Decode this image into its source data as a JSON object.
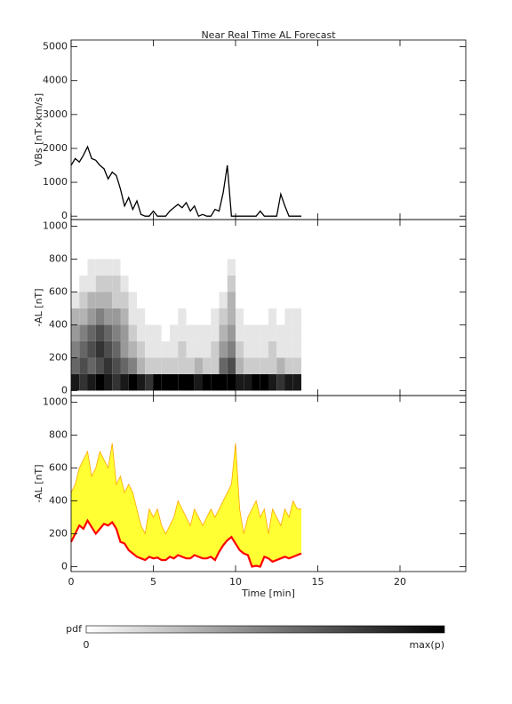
{
  "chart_data": [
    {
      "type": "line",
      "title": "Near Real Time AL Forecast",
      "ylabel": "VBs [nT×km/s]",
      "color": "#000000",
      "x": [
        0,
        0.25,
        0.5,
        0.75,
        1,
        1.25,
        1.5,
        1.75,
        2,
        2.25,
        2.5,
        2.75,
        3,
        3.25,
        3.5,
        3.75,
        4,
        4.25,
        4.5,
        4.75,
        5,
        5.25,
        5.5,
        5.75,
        6,
        6.25,
        6.5,
        6.75,
        7,
        7.25,
        7.5,
        7.75,
        8,
        8.25,
        8.5,
        8.75,
        9,
        9.25,
        9.5,
        9.75,
        10,
        10.25,
        10.5,
        10.75,
        11,
        11.25,
        11.5,
        11.75,
        12,
        12.25,
        12.5,
        12.75,
        13,
        13.25,
        13.5,
        13.75,
        14
      ],
      "values": [
        1500,
        1700,
        1600,
        1800,
        2050,
        1700,
        1650,
        1500,
        1400,
        1100,
        1300,
        1200,
        800,
        300,
        550,
        200,
        450,
        50,
        0,
        0,
        150,
        0,
        0,
        0,
        150,
        250,
        350,
        250,
        400,
        150,
        300,
        0,
        50,
        0,
        0,
        200,
        150,
        700,
        1500,
        0,
        0,
        0,
        0,
        0,
        0,
        0,
        150,
        0,
        0,
        0,
        0,
        650,
        300,
        0,
        0,
        0,
        0
      ],
      "xlim": [
        0,
        24
      ],
      "xticks": [
        0,
        5,
        10,
        15,
        20
      ],
      "ylim": [
        -100,
        5200
      ],
      "yticks": [
        0,
        1000,
        2000,
        3000,
        4000,
        5000
      ],
      "show_xtick_labels": false
    },
    {
      "type": "heatmap",
      "ylabel": "-AL [nT]",
      "x_bins": [
        0,
        0.5,
        1,
        1.5,
        2,
        2.5,
        3,
        3.5,
        4,
        4.5,
        5,
        5.5,
        6,
        6.5,
        7,
        7.5,
        8,
        8.5,
        9,
        9.5,
        10,
        10.5,
        11,
        11.5,
        12,
        12.5,
        13,
        13.5,
        14
      ],
      "y_bins": [
        0,
        100,
        200,
        300,
        400,
        500,
        600,
        700,
        800
      ],
      "z": [
        [
          0.9,
          0.8,
          0.9,
          1,
          0.9,
          0.8,
          0.9,
          1,
          0.9,
          0.8,
          1,
          1,
          1,
          1,
          1,
          0.9,
          1,
          1,
          1,
          1,
          0.9,
          0.9,
          1,
          1,
          0.9,
          0.8,
          0.9,
          0.9
        ],
        [
          0.6,
          0.7,
          0.6,
          0.7,
          0.8,
          0.7,
          0.6,
          0.5,
          0.3,
          0.2,
          0.2,
          0.2,
          0.2,
          0.2,
          0.2,
          0.3,
          0.2,
          0.2,
          0.6,
          0.7,
          0.3,
          0.2,
          0.2,
          0.2,
          0.2,
          0.3,
          0.2,
          0.2
        ],
        [
          0.5,
          0.6,
          0.7,
          0.8,
          0.7,
          0.6,
          0.4,
          0.3,
          0.2,
          0.1,
          0.1,
          0.1,
          0.1,
          0.2,
          0.1,
          0.1,
          0.1,
          0.2,
          0.4,
          0.5,
          0.2,
          0.1,
          0.1,
          0.1,
          0.2,
          0.1,
          0.1,
          0.1
        ],
        [
          0.4,
          0.5,
          0.6,
          0.7,
          0.6,
          0.5,
          0.4,
          0.2,
          0.1,
          0.1,
          0.1,
          0,
          0.1,
          0.1,
          0.1,
          0.1,
          0.1,
          0.1,
          0.3,
          0.4,
          0.1,
          0.1,
          0.1,
          0.1,
          0.1,
          0.1,
          0.1,
          0.1
        ],
        [
          0.3,
          0.3,
          0.4,
          0.5,
          0.4,
          0.4,
          0.3,
          0.1,
          0.1,
          0,
          0,
          0,
          0,
          0.1,
          0,
          0,
          0,
          0.1,
          0.2,
          0.3,
          0.1,
          0,
          0,
          0,
          0.1,
          0,
          0.1,
          0.1
        ],
        [
          0.1,
          0.2,
          0.3,
          0.3,
          0.3,
          0.2,
          0.2,
          0.1,
          0,
          0,
          0,
          0,
          0,
          0,
          0,
          0,
          0,
          0,
          0.1,
          0.3,
          0,
          0,
          0,
          0,
          0,
          0,
          0,
          0
        ],
        [
          0,
          0.1,
          0.1,
          0.2,
          0.2,
          0.2,
          0.1,
          0,
          0,
          0,
          0,
          0,
          0,
          0,
          0,
          0,
          0,
          0,
          0,
          0.2,
          0,
          0,
          0,
          0,
          0,
          0,
          0,
          0
        ],
        [
          0,
          0,
          0.1,
          0.1,
          0.1,
          0.1,
          0,
          0,
          0,
          0,
          0,
          0,
          0,
          0,
          0,
          0,
          0,
          0,
          0,
          0.1,
          0,
          0,
          0,
          0,
          0,
          0,
          0,
          0
        ]
      ],
      "colorbar": {
        "label": "pdf",
        "min_label": "0",
        "max_label": "max(p)"
      },
      "xlim": [
        0,
        24
      ],
      "xticks": [
        0,
        5,
        10,
        15,
        20
      ],
      "ylim": [
        -30,
        1040
      ],
      "yticks": [
        0,
        200,
        400,
        600,
        800,
        1000
      ],
      "show_xtick_labels": false
    },
    {
      "type": "band",
      "ylabel": "-AL [nT]",
      "xlabel": "Time [min]",
      "color": "#ff0000",
      "band_color": "#ffa500",
      "fill_color": "#ffff33",
      "x": [
        0,
        0.25,
        0.5,
        0.75,
        1,
        1.25,
        1.5,
        1.75,
        2,
        2.25,
        2.5,
        2.75,
        3,
        3.25,
        3.5,
        3.75,
        4,
        4.25,
        4.5,
        4.75,
        5,
        5.25,
        5.5,
        5.75,
        6,
        6.25,
        6.5,
        6.75,
        7,
        7.25,
        7.5,
        7.75,
        8,
        8.25,
        8.5,
        8.75,
        9,
        9.25,
        9.5,
        9.75,
        10,
        10.25,
        10.5,
        10.75,
        11,
        11.25,
        11.5,
        11.75,
        12,
        12.25,
        12.5,
        12.75,
        13,
        13.25,
        13.5,
        13.75,
        14
      ],
      "upper": [
        450,
        500,
        600,
        650,
        700,
        550,
        600,
        700,
        650,
        600,
        750,
        500,
        550,
        450,
        500,
        450,
        350,
        250,
        200,
        350,
        300,
        350,
        250,
        200,
        250,
        300,
        400,
        350,
        300,
        250,
        350,
        300,
        250,
        300,
        350,
        300,
        350,
        400,
        450,
        500,
        750,
        350,
        200,
        300,
        350,
        400,
        300,
        350,
        200,
        350,
        300,
        250,
        350,
        300,
        400,
        350,
        350
      ],
      "values": [
        150,
        200,
        250,
        230,
        280,
        240,
        200,
        230,
        260,
        250,
        270,
        230,
        150,
        140,
        100,
        80,
        60,
        50,
        40,
        60,
        50,
        55,
        40,
        40,
        60,
        50,
        70,
        60,
        50,
        50,
        70,
        60,
        50,
        50,
        60,
        40,
        90,
        130,
        160,
        180,
        140,
        100,
        80,
        70,
        0,
        5,
        0,
        60,
        50,
        30,
        40,
        50,
        60,
        50,
        60,
        70,
        80
      ],
      "xlim": [
        0,
        24
      ],
      "xticks": [
        0,
        5,
        10,
        15,
        20
      ],
      "ylim": [
        -30,
        1040
      ],
      "yticks": [
        0,
        200,
        400,
        600,
        800,
        1000
      ],
      "show_xtick_labels": true
    }
  ]
}
